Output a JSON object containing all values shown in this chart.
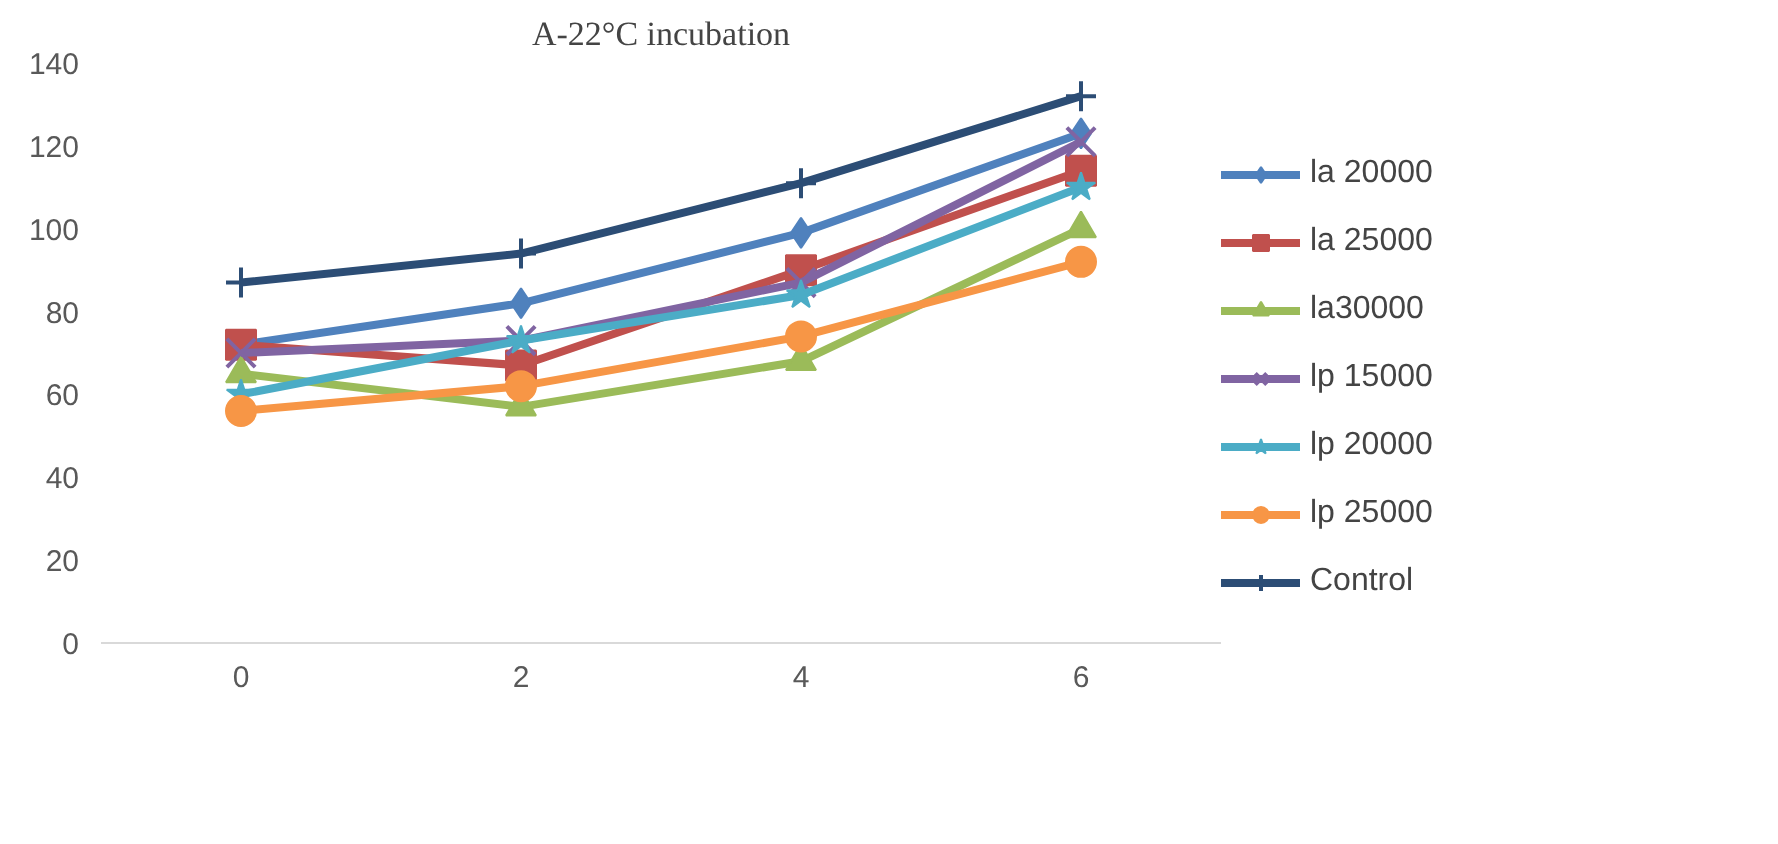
{
  "chart_data": {
    "type": "line",
    "title": "A-22°C incubation",
    "categories": [
      "0",
      "2",
      "4",
      "6"
    ],
    "ylim": [
      0,
      140
    ],
    "yticks": [
      0,
      20,
      40,
      60,
      80,
      100,
      120,
      140
    ],
    "grid": false,
    "legend": "right",
    "line_style": "solid",
    "series": [
      {
        "name": "la 20000",
        "color": "#4f81bd",
        "marker": "diamond",
        "values": [
          72,
          82,
          99,
          123
        ]
      },
      {
        "name": "la 25000",
        "color": "#c0504d",
        "marker": "square",
        "values": [
          72,
          67,
          90,
          114
        ]
      },
      {
        "name": "la30000",
        "color": "#9bbb59",
        "marker": "triangle",
        "values": [
          65,
          57,
          68,
          100
        ]
      },
      {
        "name": "lp 15000",
        "color": "#8064a2",
        "marker": "x",
        "values": [
          70,
          73,
          87,
          121
        ]
      },
      {
        "name": "lp 20000",
        "color": "#4bacc6",
        "marker": "star",
        "values": [
          60,
          73,
          84,
          110
        ]
      },
      {
        "name": "lp 25000",
        "color": "#f79646",
        "marker": "circle",
        "values": [
          56,
          62,
          74,
          92
        ]
      },
      {
        "name": "Control",
        "color": "#2c4d75",
        "marker": "cross",
        "values": [
          87,
          94,
          111,
          132
        ]
      }
    ]
  }
}
